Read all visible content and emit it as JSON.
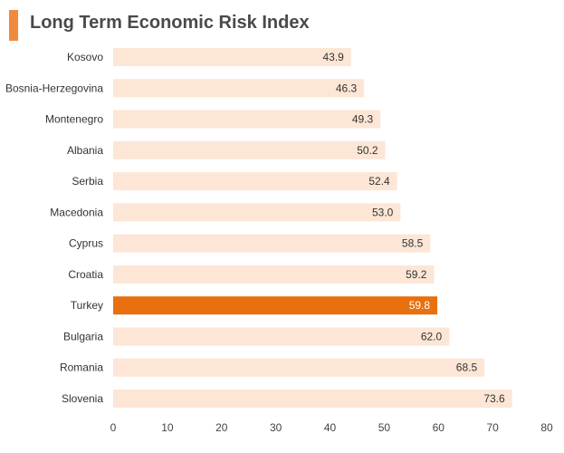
{
  "title": "Long Term Economic Risk Index",
  "colors": {
    "accent": "#f08a3c",
    "bar": "#fde6d6",
    "highlight_bar": "#e8700e",
    "value_text": "#333333",
    "highlight_value_text": "#ffffff"
  },
  "chart_data": {
    "type": "bar",
    "orientation": "horizontal",
    "title": "Long Term Economic Risk Index",
    "xlabel": "",
    "ylabel": "",
    "xlim": [
      0,
      80
    ],
    "ticks": [
      0,
      10,
      20,
      30,
      40,
      50,
      60,
      70,
      80
    ],
    "grid": false,
    "highlight": "Turkey",
    "categories": [
      "Kosovo",
      "Bosnia-Herzegovina",
      "Montenegro",
      "Albania",
      "Serbia",
      "Macedonia",
      "Cyprus",
      "Croatia",
      "Turkey",
      "Bulgaria",
      "Romania",
      "Slovenia"
    ],
    "values": [
      43.9,
      46.3,
      49.3,
      50.2,
      52.4,
      53.0,
      58.5,
      59.2,
      59.8,
      62.0,
      68.5,
      73.6
    ],
    "value_labels": [
      "43.9",
      "46.3",
      "49.3",
      "50.2",
      "52.4",
      "53.0",
      "58.5",
      "59.2",
      "59.8",
      "62.0",
      "68.5",
      "73.6"
    ]
  }
}
